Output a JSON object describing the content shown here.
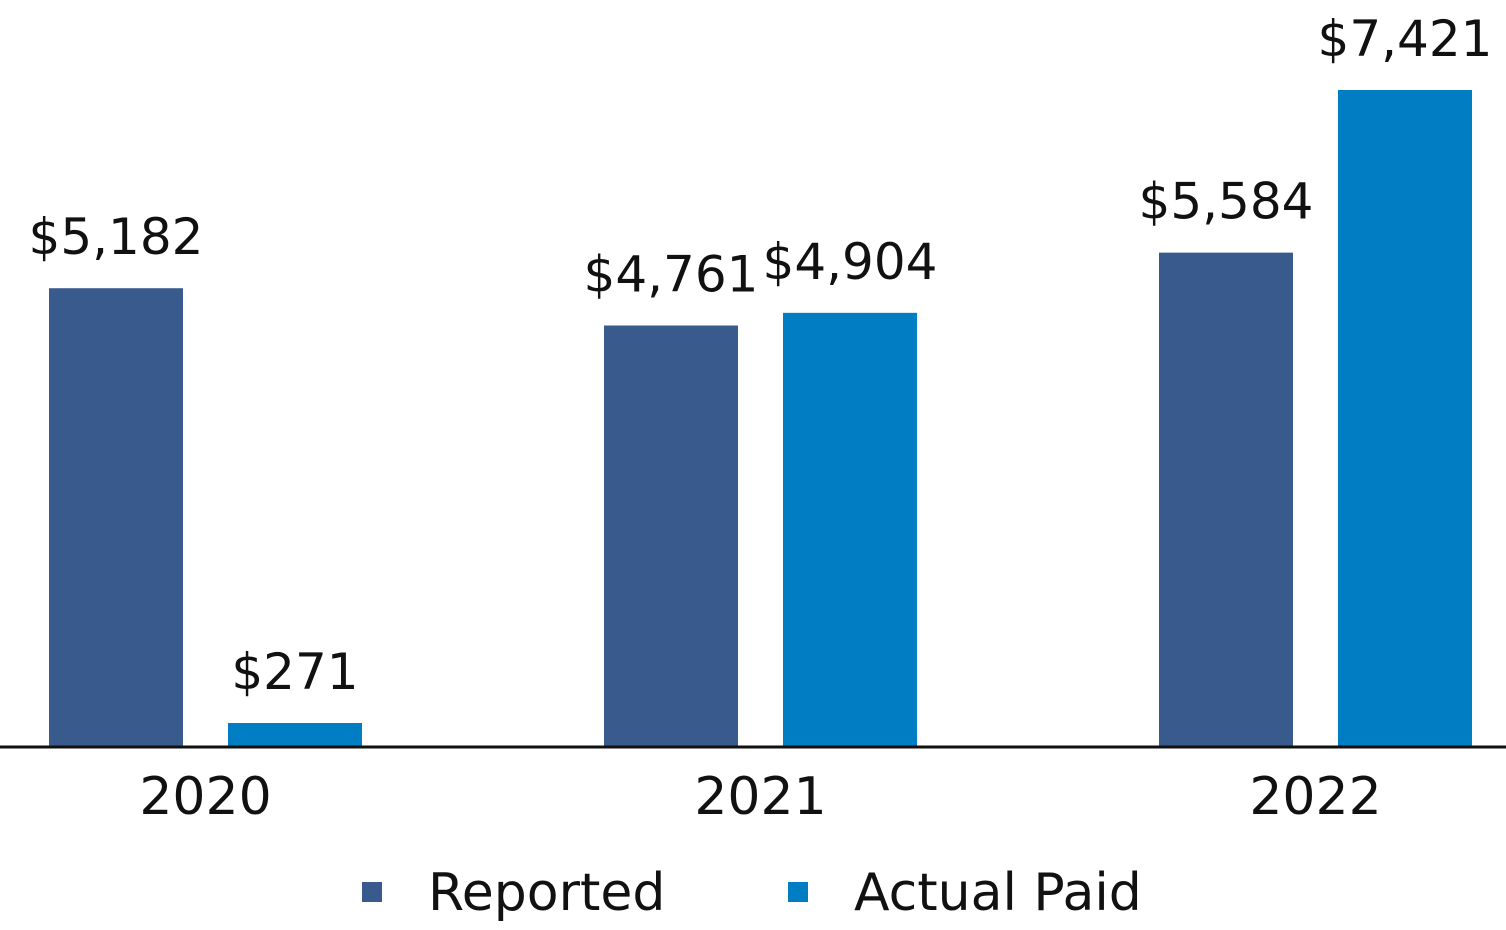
{
  "chart_data": {
    "type": "bar",
    "title": "",
    "xlabel": "",
    "ylabel": "",
    "categories": [
      "2020",
      "2021",
      "2022"
    ],
    "series": [
      {
        "name": "Reported",
        "color": "#385A8C",
        "values": [
          5182,
          4761,
          5584
        ],
        "labels": [
          "$5,182",
          "$4,761",
          "$5,584"
        ]
      },
      {
        "name": "Actual Paid",
        "color": "#007DC3",
        "values": [
          271,
          4904,
          7421
        ],
        "labels": [
          "$271",
          "$4,904",
          "$7,421"
        ]
      }
    ],
    "ylim": [
      0,
      7421
    ],
    "grid": false,
    "legend_position": "bottom"
  }
}
